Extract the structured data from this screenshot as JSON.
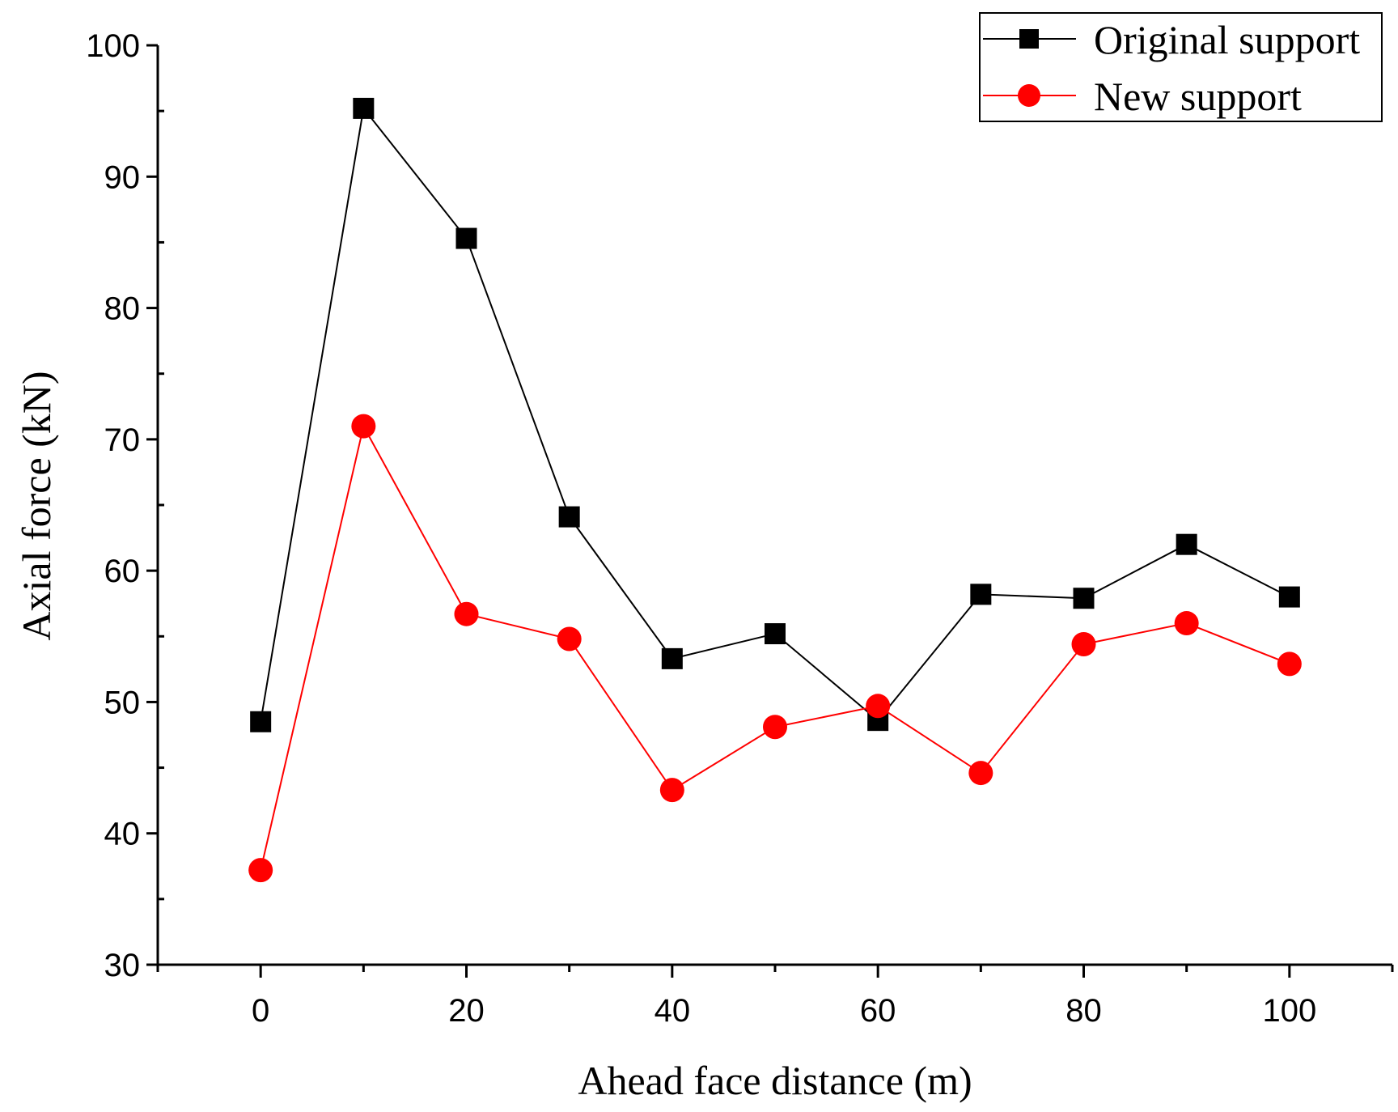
{
  "chart_data": {
    "type": "line",
    "xlabel": "Ahead face distance (m)",
    "ylabel": "Axial force (kN)",
    "xlim": [
      -10,
      110
    ],
    "ylim": [
      30,
      100
    ],
    "x_ticks": [
      0,
      20,
      40,
      60,
      80,
      100
    ],
    "y_ticks": [
      30,
      40,
      50,
      60,
      70,
      80,
      90,
      100
    ],
    "grid": false,
    "legend_position": "top-right",
    "x": [
      0,
      10,
      20,
      30,
      40,
      50,
      60,
      70,
      80,
      90,
      100
    ],
    "series": [
      {
        "name": "Original support",
        "marker": "square",
        "color": "#000000",
        "values": [
          48.5,
          95.2,
          85.3,
          64.1,
          53.3,
          55.2,
          48.6,
          58.2,
          57.9,
          62.0,
          58.0
        ]
      },
      {
        "name": "New support",
        "marker": "circle",
        "color": "#ff0000",
        "values": [
          37.2,
          71.0,
          56.7,
          54.8,
          43.3,
          48.1,
          49.7,
          44.6,
          54.4,
          56.0,
          52.9
        ]
      }
    ]
  }
}
